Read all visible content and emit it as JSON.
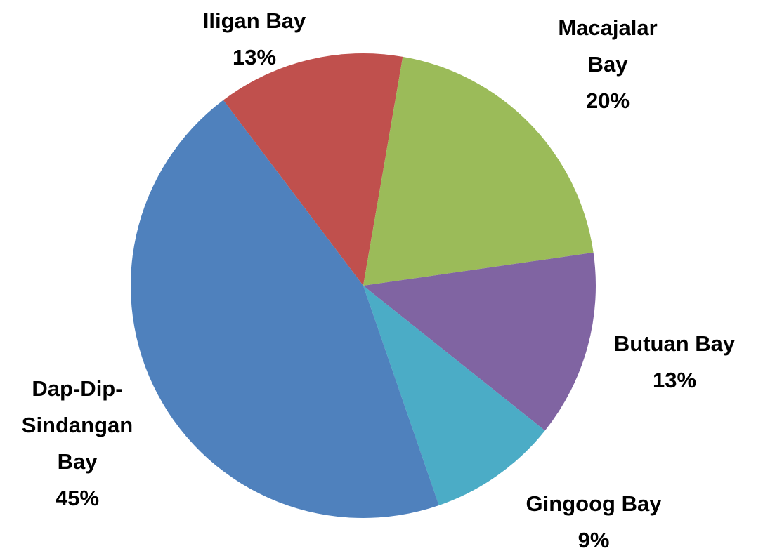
{
  "chart_data": {
    "type": "pie",
    "categories": [
      "Iligan Bay",
      "Macajalar Bay",
      "Butuan Bay",
      "Gingoog Bay",
      "Dap-Dip-Sindangan Bay"
    ],
    "values": [
      13,
      20,
      13,
      9,
      45
    ],
    "value_labels": [
      "13%",
      "20%",
      "13%",
      "9%",
      "45%"
    ],
    "colors": [
      "#c0504d",
      "#9bbb59",
      "#8064a2",
      "#4bacc6",
      "#4f81bd"
    ]
  }
}
